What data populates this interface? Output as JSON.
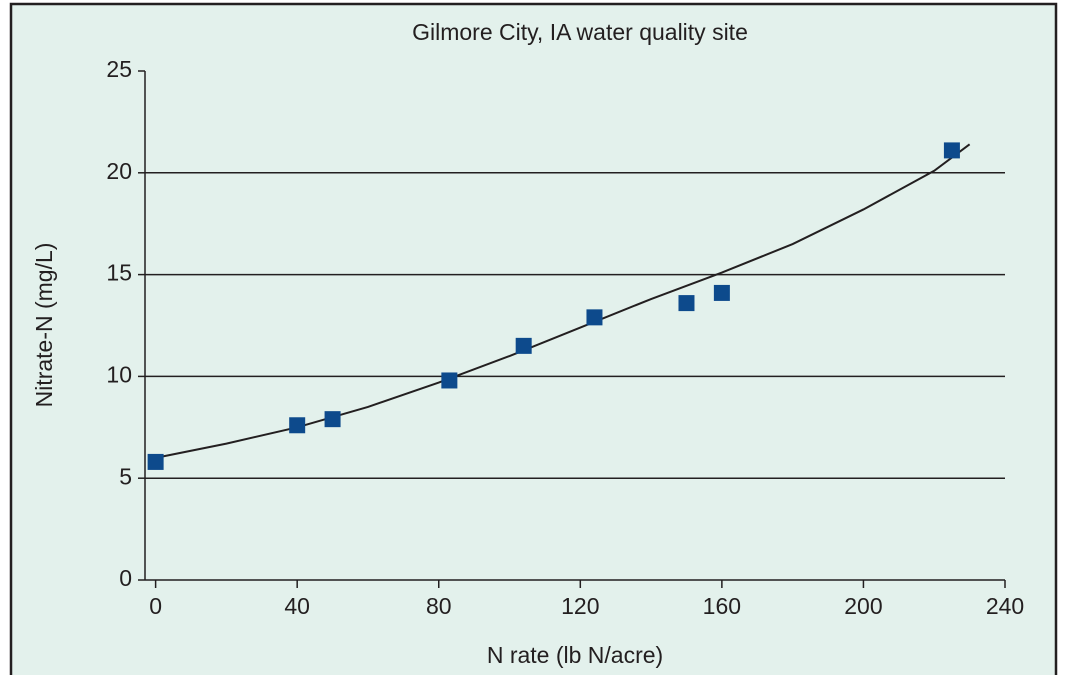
{
  "chart_data": {
    "type": "scatter",
    "title": "Gilmore City, IA water quality site",
    "x_label": "N rate (lb N/acre)",
    "y_label": "Nitrate-N (mg/L)",
    "xlim": [
      -3,
      240
    ],
    "ylim": [
      0,
      25
    ],
    "xticks": [
      0,
      40,
      80,
      120,
      160,
      200,
      240
    ],
    "yticks": [
      0,
      5,
      10,
      15,
      20,
      25
    ],
    "grid": true,
    "series": [
      {
        "type": "scatter",
        "color": "#0d4a8c",
        "x": [
          0,
          40,
          50,
          83,
          104,
          124,
          150,
          160,
          225
        ],
        "values": [
          5.8,
          7.6,
          7.9,
          9.8,
          11.5,
          12.9,
          13.6,
          14.1,
          21.1
        ]
      },
      {
        "type": "line",
        "color": "#231f20",
        "x": [
          0,
          20,
          40,
          60,
          80,
          100,
          120,
          140,
          160,
          180,
          200,
          220,
          230
        ],
        "values": [
          6.0,
          6.7,
          7.5,
          8.5,
          9.7,
          11.0,
          12.4,
          13.8,
          15.1,
          16.5,
          18.2,
          20.1,
          21.4
        ]
      }
    ]
  }
}
